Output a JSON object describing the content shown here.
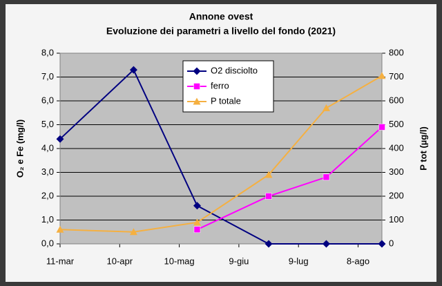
{
  "chart_data": {
    "type": "line",
    "title": "Annone ovest",
    "subtitle": "Evoluzione dei parametri a livello del fondo (2021)",
    "y_label": "O₂ e Fe (mg/l)",
    "y2_label": "P tot (µg/l)",
    "x": [
      70,
      107,
      139,
      175,
      204,
      232
    ],
    "xlim": [
      70,
      232
    ],
    "xticks": [
      {
        "value": 70,
        "label": "11-mar"
      },
      {
        "value": 100,
        "label": "10-apr"
      },
      {
        "value": 130,
        "label": "10-mag"
      },
      {
        "value": 160,
        "label": "9-giu"
      },
      {
        "value": 190,
        "label": "9-lug"
      },
      {
        "value": 220,
        "label": "8-ago"
      }
    ],
    "ylim": [
      0,
      8
    ],
    "yticks": [
      {
        "value": 0,
        "label": "0,0"
      },
      {
        "value": 1,
        "label": "1,0"
      },
      {
        "value": 2,
        "label": "2,0"
      },
      {
        "value": 3,
        "label": "3,0"
      },
      {
        "value": 4,
        "label": "4,0"
      },
      {
        "value": 5,
        "label": "5,0"
      },
      {
        "value": 6,
        "label": "6,0"
      },
      {
        "value": 7,
        "label": "7,0"
      },
      {
        "value": 8,
        "label": "8,0"
      }
    ],
    "y2lim": [
      0,
      800
    ],
    "y2ticks": [
      0,
      100,
      200,
      300,
      400,
      500,
      600,
      700,
      800
    ],
    "grid": true,
    "legend": "top",
    "series": [
      {
        "name": "O2 disciolto",
        "color": "#000080",
        "marker": "diamond",
        "values": [
          4.4,
          7.3,
          1.6,
          0,
          0,
          0
        ]
      },
      {
        "name": "ferro",
        "color": "#ff00ff",
        "marker": "square",
        "values": [
          null,
          null,
          0.6,
          2.0,
          2.8,
          4.9
        ]
      },
      {
        "name": "P totale",
        "color": "#f5b041",
        "marker": "triangle",
        "axis": "y2",
        "values": [
          60,
          50,
          90,
          290,
          570,
          705
        ]
      }
    ]
  }
}
